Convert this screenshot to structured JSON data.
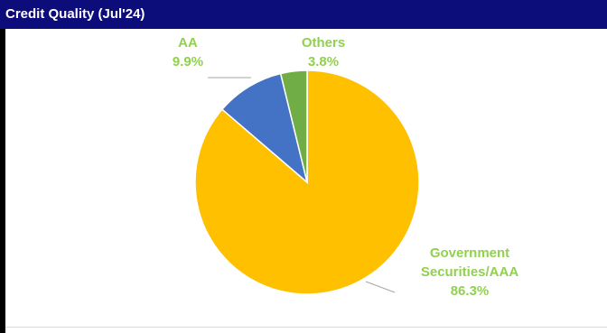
{
  "header": {
    "title": "Credit Quality (Jul'24)"
  },
  "chart_data": {
    "type": "pie",
    "title": "Credit Quality (Jul'24)",
    "slices": [
      {
        "name": "Government Securities/AAA",
        "label_lines": [
          "Government",
          "Securities/AAA"
        ],
        "value": 86.3,
        "value_label": "86.3%",
        "color": "#ffc000"
      },
      {
        "name": "AA",
        "label_lines": [
          "AA"
        ],
        "value": 9.9,
        "value_label": "9.9%",
        "color": "#4472c4"
      },
      {
        "name": "Others",
        "label_lines": [
          "Others"
        ],
        "value": 3.8,
        "value_label": "3.8%",
        "color": "#70ad47"
      }
    ],
    "label_color": "#92d050",
    "legend": "none"
  }
}
